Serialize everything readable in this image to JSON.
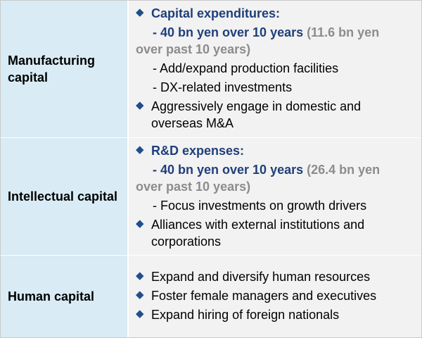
{
  "rows": [
    {
      "label": "Manufacturing capital",
      "heading": "Capital expenditures:",
      "target_main": "- 40 bn yen over 10 years",
      "target_past_1": "(11.6 bn yen",
      "target_past_2": "over past 10 years)",
      "subs": [
        "- Add/expand production facilities",
        "- DX-related investments"
      ],
      "bullets": [
        "Aggressively engage in domestic and overseas M&A"
      ]
    },
    {
      "label": "Intellectual capital",
      "heading": "R&D expenses:",
      "target_main": "- 40 bn yen over 10 years",
      "target_past_1": "(26.4 bn yen",
      "target_past_2": "over past 10 years)",
      "subs": [
        "- Focus investments on growth drivers"
      ],
      "bullets": [
        "Alliances with external institutions and corporations"
      ]
    },
    {
      "label": "Human capital",
      "bullets": [
        "Expand and diversify human resources",
        "Foster female managers and executives",
        "Expand hiring of foreign nationals"
      ]
    }
  ],
  "colors": {
    "label_bg": "#d9ebf4",
    "content_bg": "#f2f2f2",
    "accent": "#1f3f7a",
    "muted": "#8c8c8c"
  },
  "icons": {
    "bullet": "diamond-bullet-icon"
  }
}
